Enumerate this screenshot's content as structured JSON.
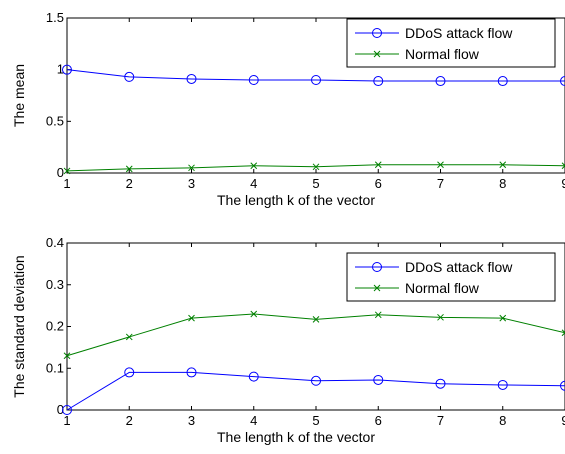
{
  "chart_data": [
    {
      "type": "line",
      "x": [
        1,
        2,
        3,
        4,
        5,
        6,
        7,
        8,
        9
      ],
      "xlabel": "The length k of the vector",
      "ylabel": "The mean",
      "xlim": [
        1,
        9
      ],
      "ylim": [
        0,
        1.5
      ],
      "xticks": [
        "1",
        "2",
        "3",
        "4",
        "5",
        "6",
        "7",
        "8",
        "9"
      ],
      "yticks": [
        "0",
        "0.5",
        "1",
        "1.5"
      ],
      "grid": false,
      "legend": "top-right",
      "series": [
        {
          "name": "DDoS attack flow",
          "marker": "circle",
          "color": "#0000ff",
          "values": [
            1.0,
            0.93,
            0.91,
            0.9,
            0.9,
            0.89,
            0.89,
            0.89,
            0.89
          ]
        },
        {
          "name": "Normal flow",
          "marker": "x",
          "color": "#008000",
          "values": [
            0.02,
            0.04,
            0.05,
            0.07,
            0.06,
            0.08,
            0.08,
            0.08,
            0.07
          ]
        }
      ]
    },
    {
      "type": "line",
      "x": [
        1,
        2,
        3,
        4,
        5,
        6,
        7,
        8,
        9
      ],
      "xlabel": "The length k of the vector",
      "ylabel": "The standard deviation",
      "xlim": [
        1,
        9
      ],
      "ylim": [
        0,
        0.4
      ],
      "xticks": [
        "1",
        "2",
        "3",
        "4",
        "5",
        "6",
        "7",
        "8",
        "9"
      ],
      "yticks": [
        "0",
        "0.1",
        "0.2",
        "0.3",
        "0.4"
      ],
      "grid": false,
      "legend": "top-right",
      "series": [
        {
          "name": "DDoS attack flow",
          "marker": "circle",
          "color": "#0000ff",
          "values": [
            0.0,
            0.09,
            0.09,
            0.08,
            0.07,
            0.072,
            0.063,
            0.06,
            0.058
          ]
        },
        {
          "name": "Normal flow",
          "marker": "x",
          "color": "#008000",
          "values": [
            0.13,
            0.175,
            0.22,
            0.23,
            0.217,
            0.228,
            0.222,
            0.22,
            0.185
          ]
        }
      ]
    }
  ]
}
